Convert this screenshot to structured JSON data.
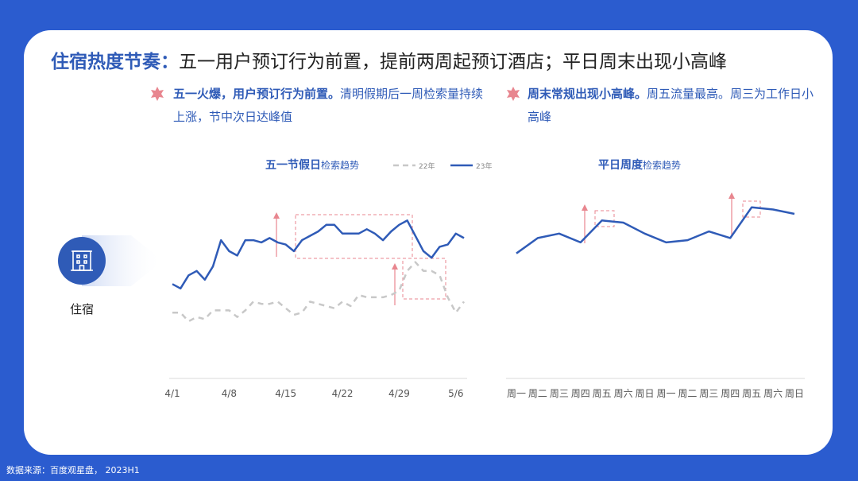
{
  "header": {
    "title_emphasis": "住宿热度节奏：",
    "title": "五一用户预订行为前置，提前两周起预订酒店；平日周末出现小高峰"
  },
  "bullets": [
    {
      "emphasis": "五一火爆，用户预订行为前置。",
      "text": "清明假期后一周检索量持续上涨，节中次日达峰值"
    },
    {
      "emphasis": "周末常规出现小高峰。",
      "text": "周五流量最高。周三为工作日小高峰"
    }
  ],
  "icon_label": "住宿",
  "source": "数据来源：百度观星盘， 2023H1",
  "chart_data": [
    {
      "type": "line",
      "title_emphasis": "五一节假日",
      "title": "检索趋势",
      "categories": [
        "4/1",
        null,
        null,
        null,
        null,
        null,
        null,
        "4/8",
        null,
        null,
        null,
        null,
        null,
        null,
        "4/15",
        null,
        null,
        null,
        null,
        null,
        null,
        "4/22",
        null,
        null,
        null,
        null,
        null,
        null,
        "4/29",
        null,
        null,
        null,
        null,
        null,
        null,
        "5/6",
        null
      ],
      "ylim": [
        0,
        100
      ],
      "series": [
        {
          "name": "22年",
          "color": "#c8c8c8",
          "dashed": true,
          "values": [
            30,
            30,
            26,
            28,
            27,
            31,
            31,
            31,
            28,
            31,
            35,
            34,
            34,
            35,
            32,
            29,
            30,
            35,
            34,
            33,
            32,
            35,
            33,
            38,
            37,
            37,
            37,
            38,
            40,
            49,
            53,
            49,
            49,
            47,
            37,
            30,
            35
          ]
        },
        {
          "name": "23年",
          "color": "#2f5bb7",
          "dashed": false,
          "values": [
            43,
            41,
            47,
            49,
            45,
            51,
            63,
            58,
            56,
            63,
            63,
            62,
            64,
            62,
            61,
            58,
            63,
            65,
            67,
            70,
            70,
            66,
            66,
            66,
            68,
            66,
            63,
            67,
            70,
            72,
            65,
            58,
            55,
            60,
            61,
            66,
            64
          ]
        }
      ]
    },
    {
      "type": "line",
      "title_emphasis": "平日周度",
      "title": "检索趋势",
      "categories": [
        "周一",
        "周二",
        "周三",
        "周四",
        "周五",
        "周六",
        "周日",
        "周一",
        "周二",
        "周三",
        "周四",
        "周五",
        "周六",
        "周日"
      ],
      "ylim": [
        0,
        100
      ],
      "series": [
        {
          "name": null,
          "color": "#2f5bb7",
          "dashed": false,
          "values": [
            57,
            64,
            66,
            62,
            72,
            71,
            66,
            62,
            63,
            67,
            64,
            78,
            77,
            75
          ]
        }
      ]
    }
  ]
}
